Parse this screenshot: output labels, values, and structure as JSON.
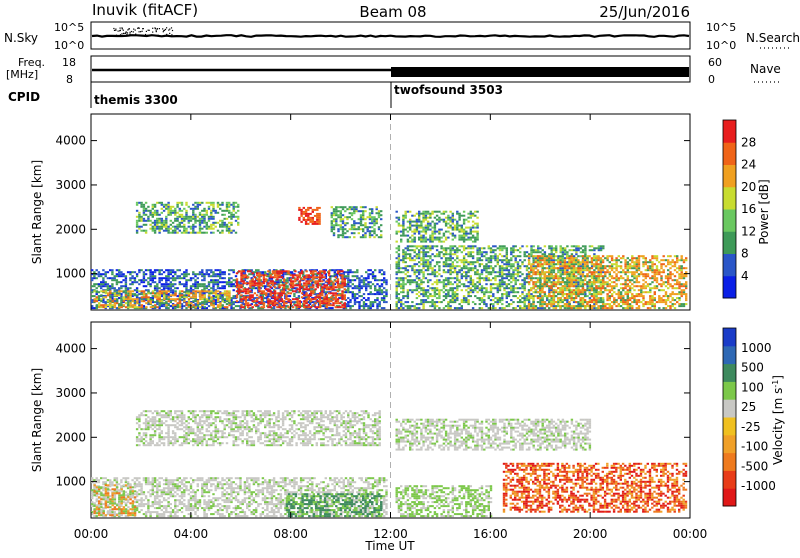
{
  "header": {
    "station": "Inuvik (fitACF)",
    "beam": "Beam 08",
    "date": "25/Jun/2016"
  },
  "top_panels": {
    "nsky_label": "N.Sky",
    "nsearch_label": "N.Search",
    "freq_label_1": "Freq.",
    "freq_label_2": "[MHz]",
    "nave_label": "Nave",
    "cpid_label": "CPID",
    "nsky_ticks": [
      "10^5",
      "10^0"
    ],
    "nsearch_ticks": [
      "10^5",
      "10^0"
    ],
    "freq_ticks": [
      "18",
      "8"
    ],
    "nave_ticks": [
      "60",
      "0"
    ],
    "cpid_segments": [
      "themis 3300",
      "twofsound 3503"
    ]
  },
  "colors": {
    "power": [
      "#0a1fe6",
      "#2a56c8",
      "#3e9a58",
      "#6ac860",
      "#c8dc30",
      "#f0a020",
      "#f06418",
      "#e81e1e"
    ],
    "velocity": [
      "#1a3cc8",
      "#2e68b4",
      "#3e8a5e",
      "#7cc84a",
      "#c8c8c4",
      "#f0c020",
      "#f0a028",
      "#ee7a1e",
      "#e83c18",
      "#e01818"
    ]
  },
  "chart_data": [
    {
      "type": "heatmap",
      "panel": "power",
      "xlabel": "Time UT",
      "ylabel": "Slant Range [km]",
      "x_ticks": [
        "00:00",
        "04:00",
        "08:00",
        "12:00",
        "16:00",
        "20:00",
        "00:00"
      ],
      "y_ticks": [
        "1000",
        "2000",
        "3000",
        "4000"
      ],
      "ylim": [
        180,
        4600
      ],
      "colorbar_label": "Power [dB]",
      "colorbar_ticks": [
        "4",
        "8",
        "12",
        "16",
        "20",
        "24",
        "28"
      ],
      "grid": false,
      "regions": [
        {
          "t0": 0.0,
          "t1": 11.8,
          "r0": 200,
          "r1": 1100,
          "level": "weak"
        },
        {
          "t0": 0.1,
          "t1": 5.5,
          "r0": 220,
          "r1": 600,
          "level": "strong"
        },
        {
          "t0": 5.8,
          "t1": 10.2,
          "r0": 220,
          "r1": 1050,
          "level": "very_strong"
        },
        {
          "t0": 1.8,
          "t1": 5.9,
          "r0": 1900,
          "r1": 2600,
          "level": "moderate"
        },
        {
          "t0": 8.3,
          "t1": 9.2,
          "r0": 2100,
          "r1": 2500,
          "level": "very_strong"
        },
        {
          "t0": 9.6,
          "t1": 11.6,
          "r0": 1800,
          "r1": 2500,
          "level": "moderate"
        },
        {
          "t0": 12.2,
          "t1": 15.5,
          "r0": 1700,
          "r1": 2400,
          "level": "moderate"
        },
        {
          "t0": 12.2,
          "t1": 20.5,
          "r0": 200,
          "r1": 1600,
          "level": "moderate"
        },
        {
          "t0": 17.5,
          "t1": 23.8,
          "r0": 200,
          "r1": 1400,
          "level": "strong"
        }
      ]
    },
    {
      "type": "heatmap",
      "panel": "velocity",
      "xlabel": "Time UT",
      "ylabel": "Slant Range [km]",
      "x_ticks": [
        "00:00",
        "04:00",
        "08:00",
        "12:00",
        "16:00",
        "20:00",
        "00:00"
      ],
      "y_ticks": [
        "1000",
        "2000",
        "3000",
        "4000"
      ],
      "ylim": [
        180,
        4600
      ],
      "colorbar_label": "Velocity [m s^-1]",
      "colorbar_ticks": [
        "1000",
        "500",
        "100",
        "25",
        "-25",
        "-100",
        "-500",
        "-1000"
      ],
      "grid": false,
      "regions": [
        {
          "t0": 0.0,
          "t1": 11.8,
          "r0": 200,
          "r1": 1100,
          "level": "near_zero"
        },
        {
          "t0": 0.1,
          "t1": 1.8,
          "r0": 220,
          "r1": 900,
          "level": "away_slow"
        },
        {
          "t0": 7.8,
          "t1": 11.6,
          "r0": 200,
          "r1": 700,
          "level": "toward"
        },
        {
          "t0": 12.2,
          "t1": 16.0,
          "r0": 200,
          "r1": 900,
          "level": "toward_slow"
        },
        {
          "t0": 1.8,
          "t1": 11.6,
          "r0": 1800,
          "r1": 2600,
          "level": "near_zero"
        },
        {
          "t0": 12.2,
          "t1": 20.0,
          "r0": 1700,
          "r1": 2400,
          "level": "near_zero"
        },
        {
          "t0": 16.5,
          "t1": 23.8,
          "r0": 300,
          "r1": 1400,
          "level": "away"
        }
      ]
    }
  ]
}
